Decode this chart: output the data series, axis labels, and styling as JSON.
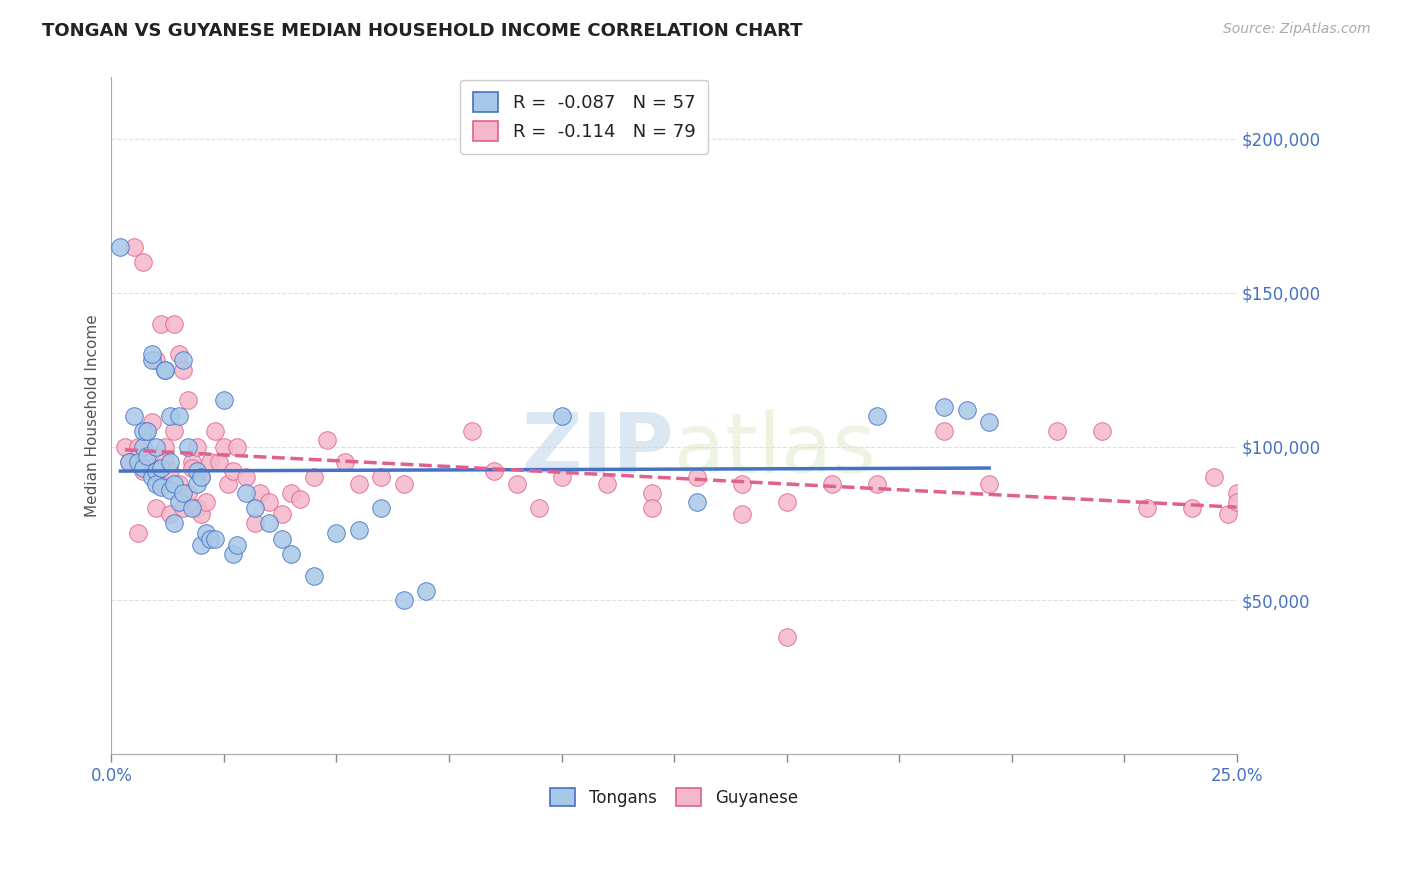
{
  "title": "TONGAN VS GUYANESE MEDIAN HOUSEHOLD INCOME CORRELATION CHART",
  "source": "Source: ZipAtlas.com",
  "ylabel": "Median Household Income",
  "xlim": [
    0.0,
    0.25
  ],
  "ylim": [
    0,
    220000
  ],
  "watermark_zip": "ZIP",
  "watermark_atlas": "atlas",
  "legend_line1": "R =  -0.087   N = 57",
  "legend_line2": "R =  -0.114   N = 79",
  "legend_label_tongan": "Tongans",
  "legend_label_guyanese": "Guyanese",
  "tongan_color": "#a8c8e8",
  "guyanese_color": "#f5b8cb",
  "trend_tongan_color": "#4472c4",
  "trend_guyanese_color": "#e06090",
  "title_color": "#222222",
  "axis_label_color": "#4472c4",
  "background_color": "#ffffff",
  "grid_color": "#e0e0e0",
  "tongan_x": [
    0.002,
    0.004,
    0.005,
    0.006,
    0.007,
    0.007,
    0.007,
    0.008,
    0.008,
    0.009,
    0.009,
    0.009,
    0.01,
    0.01,
    0.01,
    0.011,
    0.011,
    0.012,
    0.012,
    0.013,
    0.013,
    0.013,
    0.014,
    0.014,
    0.015,
    0.015,
    0.016,
    0.016,
    0.017,
    0.018,
    0.019,
    0.019,
    0.02,
    0.02,
    0.021,
    0.022,
    0.023,
    0.025,
    0.027,
    0.028,
    0.03,
    0.032,
    0.035,
    0.038,
    0.04,
    0.045,
    0.05,
    0.055,
    0.06,
    0.065,
    0.07,
    0.1,
    0.13,
    0.17,
    0.185,
    0.19,
    0.195
  ],
  "tongan_y": [
    165000,
    95000,
    110000,
    95000,
    100000,
    93000,
    105000,
    105000,
    97000,
    128000,
    130000,
    90000,
    92000,
    88000,
    100000,
    93000,
    87000,
    125000,
    125000,
    95000,
    86000,
    110000,
    88000,
    75000,
    82000,
    110000,
    128000,
    85000,
    100000,
    80000,
    92000,
    88000,
    90000,
    68000,
    72000,
    70000,
    70000,
    115000,
    65000,
    68000,
    85000,
    80000,
    75000,
    70000,
    65000,
    58000,
    72000,
    73000,
    80000,
    50000,
    53000,
    110000,
    82000,
    110000,
    113000,
    112000,
    108000
  ],
  "guyanese_x": [
    0.003,
    0.004,
    0.005,
    0.006,
    0.006,
    0.007,
    0.007,
    0.008,
    0.008,
    0.009,
    0.009,
    0.01,
    0.01,
    0.011,
    0.011,
    0.012,
    0.012,
    0.013,
    0.013,
    0.014,
    0.014,
    0.015,
    0.015,
    0.016,
    0.016,
    0.017,
    0.017,
    0.018,
    0.018,
    0.019,
    0.019,
    0.02,
    0.02,
    0.021,
    0.022,
    0.023,
    0.024,
    0.025,
    0.026,
    0.027,
    0.028,
    0.03,
    0.032,
    0.033,
    0.035,
    0.038,
    0.04,
    0.042,
    0.045,
    0.048,
    0.052,
    0.055,
    0.06,
    0.065,
    0.08,
    0.085,
    0.09,
    0.095,
    0.1,
    0.11,
    0.12,
    0.13,
    0.14,
    0.15,
    0.16,
    0.17,
    0.185,
    0.195,
    0.21,
    0.22,
    0.23,
    0.24,
    0.245,
    0.248,
    0.25,
    0.25,
    0.12,
    0.14,
    0.15
  ],
  "guyanese_y": [
    100000,
    95000,
    165000,
    100000,
    72000,
    160000,
    92000,
    105000,
    95000,
    108000,
    93000,
    128000,
    80000,
    140000,
    88000,
    100000,
    95000,
    92000,
    78000,
    140000,
    105000,
    130000,
    88000,
    125000,
    80000,
    115000,
    85000,
    95000,
    93000,
    100000,
    80000,
    90000,
    78000,
    82000,
    95000,
    105000,
    95000,
    100000,
    88000,
    92000,
    100000,
    90000,
    75000,
    85000,
    82000,
    78000,
    85000,
    83000,
    90000,
    102000,
    95000,
    88000,
    90000,
    88000,
    105000,
    92000,
    88000,
    80000,
    90000,
    88000,
    85000,
    90000,
    88000,
    82000,
    88000,
    88000,
    105000,
    88000,
    105000,
    105000,
    80000,
    80000,
    90000,
    78000,
    85000,
    82000,
    80000,
    78000,
    38000
  ],
  "xtick_positions": [
    0.0,
    0.025,
    0.05,
    0.075,
    0.1,
    0.125,
    0.15,
    0.175,
    0.2,
    0.225,
    0.25
  ],
  "ytick_vals": [
    50000,
    100000,
    150000,
    200000
  ],
  "ytick_labels": [
    "$50,000",
    "$100,000",
    "$150,000",
    "$200,000"
  ]
}
